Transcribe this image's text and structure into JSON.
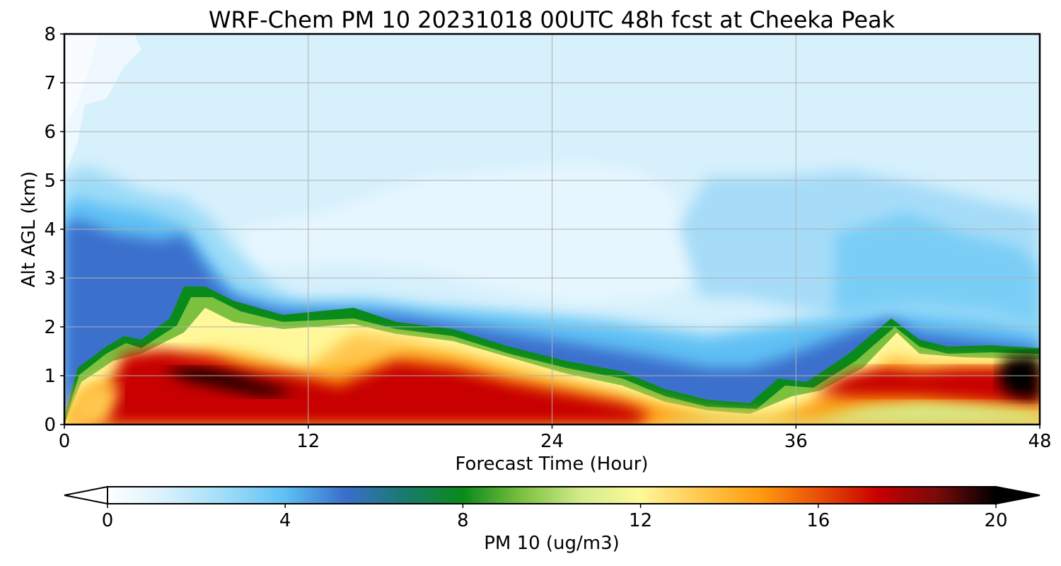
{
  "chart_data": {
    "type": "heatmap",
    "title": "WRF-Chem PM 10  20231018 00UTC 48h fcst at Cheeka Peak",
    "xlabel": "Forecast Time (Hour)",
    "ylabel": "Alt AGL (km)",
    "xlim": [
      0,
      48
    ],
    "ylim": [
      0,
      8
    ],
    "x_ticks": [
      "0",
      "12",
      "24",
      "36",
      "48"
    ],
    "y_ticks": [
      "0",
      "1",
      "2",
      "3",
      "4",
      "5",
      "6",
      "7",
      "8"
    ],
    "grid": true,
    "colorbar": {
      "label": "PM 10  (ug/m3)",
      "range": [
        0,
        20
      ],
      "ticks": [
        "0",
        "4",
        "8",
        "12",
        "16",
        "20"
      ],
      "extend": "both",
      "colors": [
        "#ffffff",
        "#d8f0fc",
        "#9edcf8",
        "#5ec0f4",
        "#3a6fcc",
        "#1a7a70",
        "#0a8a1a",
        "#7cc040",
        "#d4ec8c",
        "#fff89a",
        "#ffc850",
        "#ff9c10",
        "#e85008",
        "#c80000",
        "#7a0a0a",
        "#000000"
      ]
    },
    "boundary_layer_top_km": {
      "x": [
        0,
        1,
        3,
        6,
        7,
        9,
        12,
        15,
        18,
        21,
        24,
        27,
        30,
        33,
        36,
        39,
        40,
        42,
        45,
        48
      ],
      "y": [
        0.2,
        1.1,
        1.7,
        2.6,
        2.3,
        2.0,
        2.0,
        2.1,
        1.8,
        1.45,
        1.2,
        1.0,
        0.6,
        0.45,
        0.9,
        1.6,
        2.0,
        1.55,
        1.5,
        1.5
      ]
    },
    "pm10_core_max": [
      {
        "x": 8.5,
        "y": 0.8,
        "value": 20
      },
      {
        "x": 47.5,
        "y": 0.9,
        "value": 20
      }
    ]
  }
}
